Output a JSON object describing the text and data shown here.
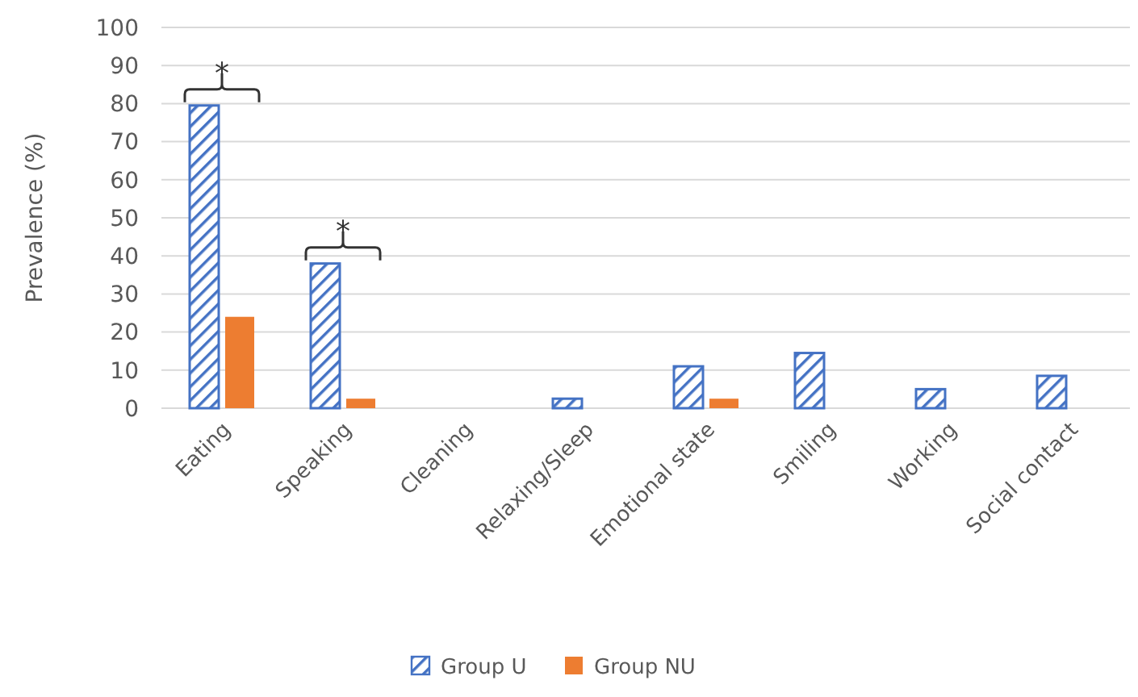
{
  "chart_data": {
    "type": "bar",
    "ylabel": "Prevalence (%)",
    "categories": [
      "Eating",
      "Speaking",
      "Cleaning",
      "Relaxing/Sleep",
      "Emotional state",
      "Smiling",
      "Working",
      "Social contact"
    ],
    "series": [
      {
        "name": "Group U",
        "color": "#4472c4",
        "values": [
          79.5,
          38,
          0,
          2.5,
          11,
          14.5,
          5,
          8.5
        ]
      },
      {
        "name": "Group NU",
        "color": "#ed7d31",
        "values": [
          24,
          2.5,
          0,
          0,
          2.5,
          0,
          0,
          0
        ]
      }
    ],
    "ylim": [
      0,
      100
    ],
    "yticks": [
      0,
      10,
      20,
      30,
      40,
      50,
      60,
      70,
      80,
      90,
      100
    ],
    "grid": "y",
    "legend": "bottom",
    "annotations": [
      "*",
      "*"
    ]
  }
}
